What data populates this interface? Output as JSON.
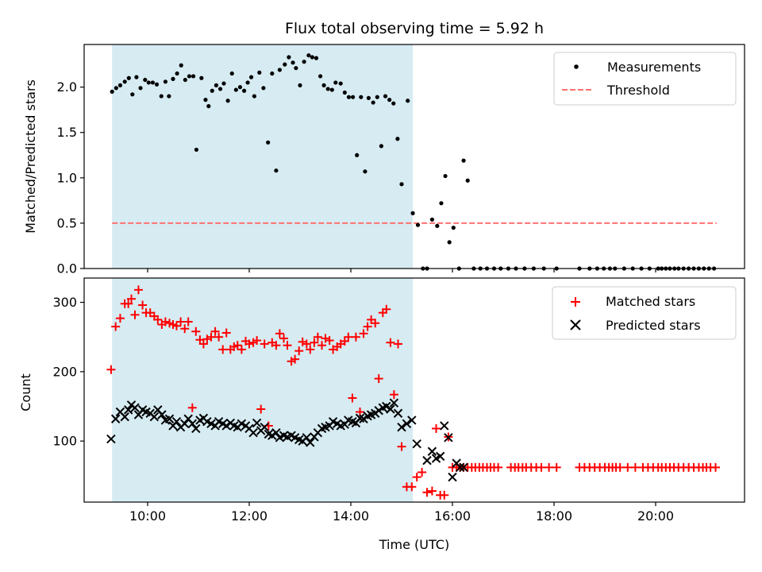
{
  "chart_data": [
    {
      "type": "scatter",
      "title": "Flux total observing time = 5.92 h",
      "xlabel": "",
      "ylabel": "Matched/Predicted stars",
      "xlim": [
        8.75,
        21.75
      ],
      "ylim": [
        0.0,
        2.47
      ],
      "xticks": [
        10,
        12,
        14,
        16,
        18,
        20
      ],
      "xtick_labels": [],
      "yticks": [
        0.0,
        0.5,
        1.0,
        1.5,
        2.0
      ],
      "ytick_labels": [
        "0.0",
        "0.5",
        "1.0",
        "1.5",
        "2.0"
      ],
      "shaded_span": [
        9.3,
        15.22
      ],
      "grid": false,
      "legend_position": "top-right",
      "threshold": {
        "name": "Threshold",
        "value": 0.5,
        "x_range": [
          9.3,
          21.2
        ],
        "color": "#ff7070",
        "style": "dashed"
      },
      "series": [
        {
          "name": "Measurements",
          "color": "#000000",
          "marker": "dot",
          "x": [
            9.3,
            9.38,
            9.46,
            9.55,
            9.63,
            9.7,
            9.78,
            9.86,
            9.95,
            10.02,
            10.1,
            10.18,
            10.27,
            10.35,
            10.42,
            10.5,
            10.58,
            10.66,
            10.74,
            10.82,
            10.9,
            10.96,
            11.06,
            11.14,
            11.2,
            11.27,
            11.35,
            11.43,
            11.5,
            11.58,
            11.66,
            11.74,
            11.82,
            11.9,
            11.97,
            12.04,
            12.1,
            12.2,
            12.28,
            12.37,
            12.45,
            12.53,
            12.6,
            12.7,
            12.78,
            12.86,
            12.92,
            13.0,
            13.08,
            13.17,
            13.24,
            13.32,
            13.4,
            13.47,
            13.55,
            13.63,
            13.7,
            13.8,
            13.88,
            13.96,
            14.04,
            14.12,
            14.2,
            14.28,
            14.35,
            14.44,
            14.52,
            14.6,
            14.68,
            14.76,
            14.84,
            14.92,
            15.0,
            15.12,
            15.22,
            15.32,
            15.42,
            15.5,
            15.6,
            15.7,
            15.78,
            15.86,
            15.94,
            16.02,
            16.13,
            16.22,
            16.3,
            16.42,
            16.55,
            16.68,
            16.82,
            16.95,
            17.1,
            17.25,
            17.42,
            17.6,
            17.8,
            18.05,
            18.5,
            18.7,
            18.85,
            18.98,
            19.1,
            19.2,
            19.38,
            19.55,
            19.72,
            19.88,
            20.05,
            20.12,
            20.2,
            20.28,
            20.37,
            20.45,
            20.55,
            20.65,
            20.75,
            20.85,
            20.95,
            21.05,
            21.15
          ],
          "y": [
            1.95,
            1.99,
            2.02,
            2.06,
            2.1,
            1.92,
            2.11,
            1.99,
            2.08,
            2.05,
            2.05,
            2.03,
            1.9,
            2.06,
            1.9,
            2.09,
            2.15,
            2.24,
            2.08,
            2.12,
            2.12,
            1.31,
            2.1,
            1.86,
            1.79,
            1.96,
            2.02,
            1.98,
            2.04,
            1.85,
            2.15,
            1.97,
            2.0,
            1.96,
            2.05,
            2.11,
            1.9,
            2.16,
            1.99,
            1.39,
            2.15,
            1.08,
            2.19,
            2.25,
            2.33,
            2.27,
            2.21,
            2.02,
            2.28,
            2.35,
            2.33,
            2.32,
            2.12,
            2.02,
            1.98,
            1.97,
            2.05,
            2.04,
            1.94,
            1.89,
            1.89,
            1.25,
            1.89,
            1.07,
            1.88,
            1.83,
            1.89,
            1.35,
            1.9,
            1.86,
            1.82,
            1.43,
            0.93,
            1.85,
            0.61,
            0.48,
            0.0,
            0.0,
            0.54,
            0.47,
            0.72,
            1.02,
            0.29,
            0.45,
            0.0,
            1.19,
            0.97,
            0.0,
            0.0,
            0.0,
            0.0,
            0.0,
            0.0,
            0.0,
            0.0,
            0.0,
            0.0,
            0.0,
            0.0,
            0.0,
            0.0,
            0.0,
            0.0,
            0.0,
            0.0,
            0.0,
            0.0,
            0.0,
            0.0,
            0.0,
            0.0,
            0.0,
            0.0,
            0.0,
            0.0,
            0.0,
            0.0,
            0.0,
            0.0,
            0.0,
            0.0
          ]
        }
      ]
    },
    {
      "type": "scatter",
      "title": "",
      "xlabel": "Time (UTC)",
      "ylabel": "Count",
      "xlim": [
        8.75,
        21.75
      ],
      "ylim": [
        12,
        335
      ],
      "xticks": [
        10,
        12,
        14,
        16,
        18,
        20
      ],
      "xtick_labels": [
        "10:00",
        "12:00",
        "14:00",
        "16:00",
        "18:00",
        "20:00"
      ],
      "yticks": [
        100,
        200,
        300
      ],
      "ytick_labels": [
        "100",
        "200",
        "300"
      ],
      "shaded_span": [
        9.3,
        15.22
      ],
      "grid": false,
      "legend_position": "top-right",
      "series": [
        {
          "name": "Matched stars",
          "color": "#ff0000",
          "marker": "plus",
          "x": [
            9.28,
            9.37,
            9.46,
            9.55,
            9.62,
            9.68,
            9.75,
            9.82,
            9.9,
            9.97,
            10.05,
            10.13,
            10.2,
            10.28,
            10.35,
            10.43,
            10.5,
            10.57,
            10.65,
            10.73,
            10.8,
            10.88,
            10.95,
            11.03,
            11.1,
            11.17,
            11.25,
            11.33,
            11.4,
            11.48,
            11.55,
            11.63,
            11.7,
            11.77,
            11.85,
            11.93,
            12.0,
            12.08,
            12.15,
            12.23,
            12.3,
            12.38,
            12.45,
            12.53,
            12.6,
            12.68,
            12.75,
            12.83,
            12.9,
            12.98,
            13.05,
            13.13,
            13.2,
            13.28,
            13.35,
            13.43,
            13.5,
            13.58,
            13.65,
            13.73,
            13.8,
            13.88,
            13.95,
            14.03,
            14.1,
            14.18,
            14.25,
            14.33,
            14.4,
            14.48,
            14.55,
            14.63,
            14.7,
            14.78,
            14.85,
            14.93,
            15.0,
            15.1,
            15.2,
            15.3,
            15.4,
            15.5,
            15.6,
            15.68,
            15.76,
            15.84,
            15.92,
            16.0,
            16.08,
            16.15,
            16.22,
            16.3,
            16.38,
            16.45,
            16.53,
            16.6,
            16.68,
            16.75,
            16.82,
            16.9,
            17.15,
            17.23,
            17.3,
            17.38,
            17.45,
            17.55,
            17.65,
            17.75,
            17.9,
            18.05,
            18.5,
            18.6,
            18.7,
            18.8,
            18.9,
            19.0,
            19.08,
            19.15,
            19.22,
            19.3,
            19.45,
            19.6,
            19.75,
            19.85,
            19.95,
            20.05,
            20.12,
            20.2,
            20.28,
            20.36,
            20.45,
            20.55,
            20.65,
            20.75,
            20.85,
            20.93,
            21.0,
            21.08,
            21.18
          ],
          "y": [
            203,
            265,
            277,
            298,
            298,
            305,
            282,
            318,
            296,
            285,
            285,
            280,
            275,
            268,
            272,
            270,
            268,
            266,
            272,
            262,
            272,
            148,
            258,
            246,
            240,
            247,
            250,
            258,
            250,
            232,
            256,
            232,
            236,
            238,
            232,
            244,
            240,
            242,
            245,
            146,
            240,
            122,
            242,
            238,
            255,
            248,
            238,
            215,
            218,
            230,
            243,
            240,
            232,
            242,
            250,
            238,
            248,
            245,
            232,
            236,
            240,
            244,
            250,
            162,
            250,
            142,
            255,
            265,
            275,
            270,
            190,
            285,
            290,
            242,
            167,
            240,
            92,
            34,
            34,
            48,
            55,
            26,
            28,
            118,
            22,
            22,
            106,
            62,
            62,
            62,
            62,
            62,
            62,
            62,
            62,
            62,
            62,
            62,
            62,
            62,
            62,
            62,
            62,
            62,
            62,
            62,
            62,
            62,
            62,
            62,
            62,
            62,
            62,
            62,
            62,
            62,
            62,
            62,
            62,
            62,
            62,
            62,
            62,
            62,
            62,
            62,
            62,
            62,
            62,
            62,
            62,
            62,
            62,
            62,
            62,
            62,
            62,
            62,
            62
          ]
        },
        {
          "name": "Predicted stars",
          "color": "#000000",
          "marker": "x",
          "x": [
            9.28,
            9.37,
            9.46,
            9.55,
            9.62,
            9.68,
            9.75,
            9.82,
            9.9,
            9.97,
            10.05,
            10.13,
            10.2,
            10.28,
            10.35,
            10.43,
            10.5,
            10.57,
            10.65,
            10.73,
            10.8,
            10.88,
            10.95,
            11.03,
            11.1,
            11.17,
            11.25,
            11.33,
            11.4,
            11.48,
            11.55,
            11.63,
            11.7,
            11.77,
            11.85,
            11.93,
            12.0,
            12.08,
            12.15,
            12.23,
            12.3,
            12.38,
            12.45,
            12.53,
            12.6,
            12.68,
            12.75,
            12.83,
            12.9,
            12.98,
            13.05,
            13.13,
            13.2,
            13.28,
            13.35,
            13.43,
            13.5,
            13.58,
            13.65,
            13.73,
            13.8,
            13.88,
            13.95,
            14.03,
            14.1,
            14.18,
            14.25,
            14.33,
            14.4,
            14.48,
            14.55,
            14.63,
            14.7,
            14.78,
            14.85,
            14.93,
            15.0,
            15.1,
            15.2,
            15.3,
            15.5,
            15.6,
            15.68,
            15.76,
            15.84,
            15.92,
            16.0,
            16.08,
            16.15,
            16.22
          ],
          "y": [
            103,
            132,
            142,
            135,
            145,
            152,
            148,
            138,
            145,
            142,
            140,
            135,
            145,
            138,
            130,
            132,
            122,
            128,
            120,
            125,
            132,
            125,
            118,
            130,
            133,
            128,
            125,
            122,
            128,
            125,
            122,
            126,
            122,
            120,
            125,
            122,
            118,
            112,
            126,
            115,
            120,
            110,
            108,
            112,
            105,
            108,
            106,
            108,
            105,
            102,
            100,
            105,
            98,
            106,
            112,
            118,
            120,
            122,
            128,
            125,
            122,
            124,
            130,
            128,
            126,
            133,
            132,
            136,
            138,
            140,
            144,
            148,
            150,
            146,
            155,
            140,
            120,
            125,
            130,
            96,
            72,
            85,
            75,
            78,
            122,
            105,
            48,
            68,
            62,
            62
          ]
        }
      ]
    }
  ]
}
